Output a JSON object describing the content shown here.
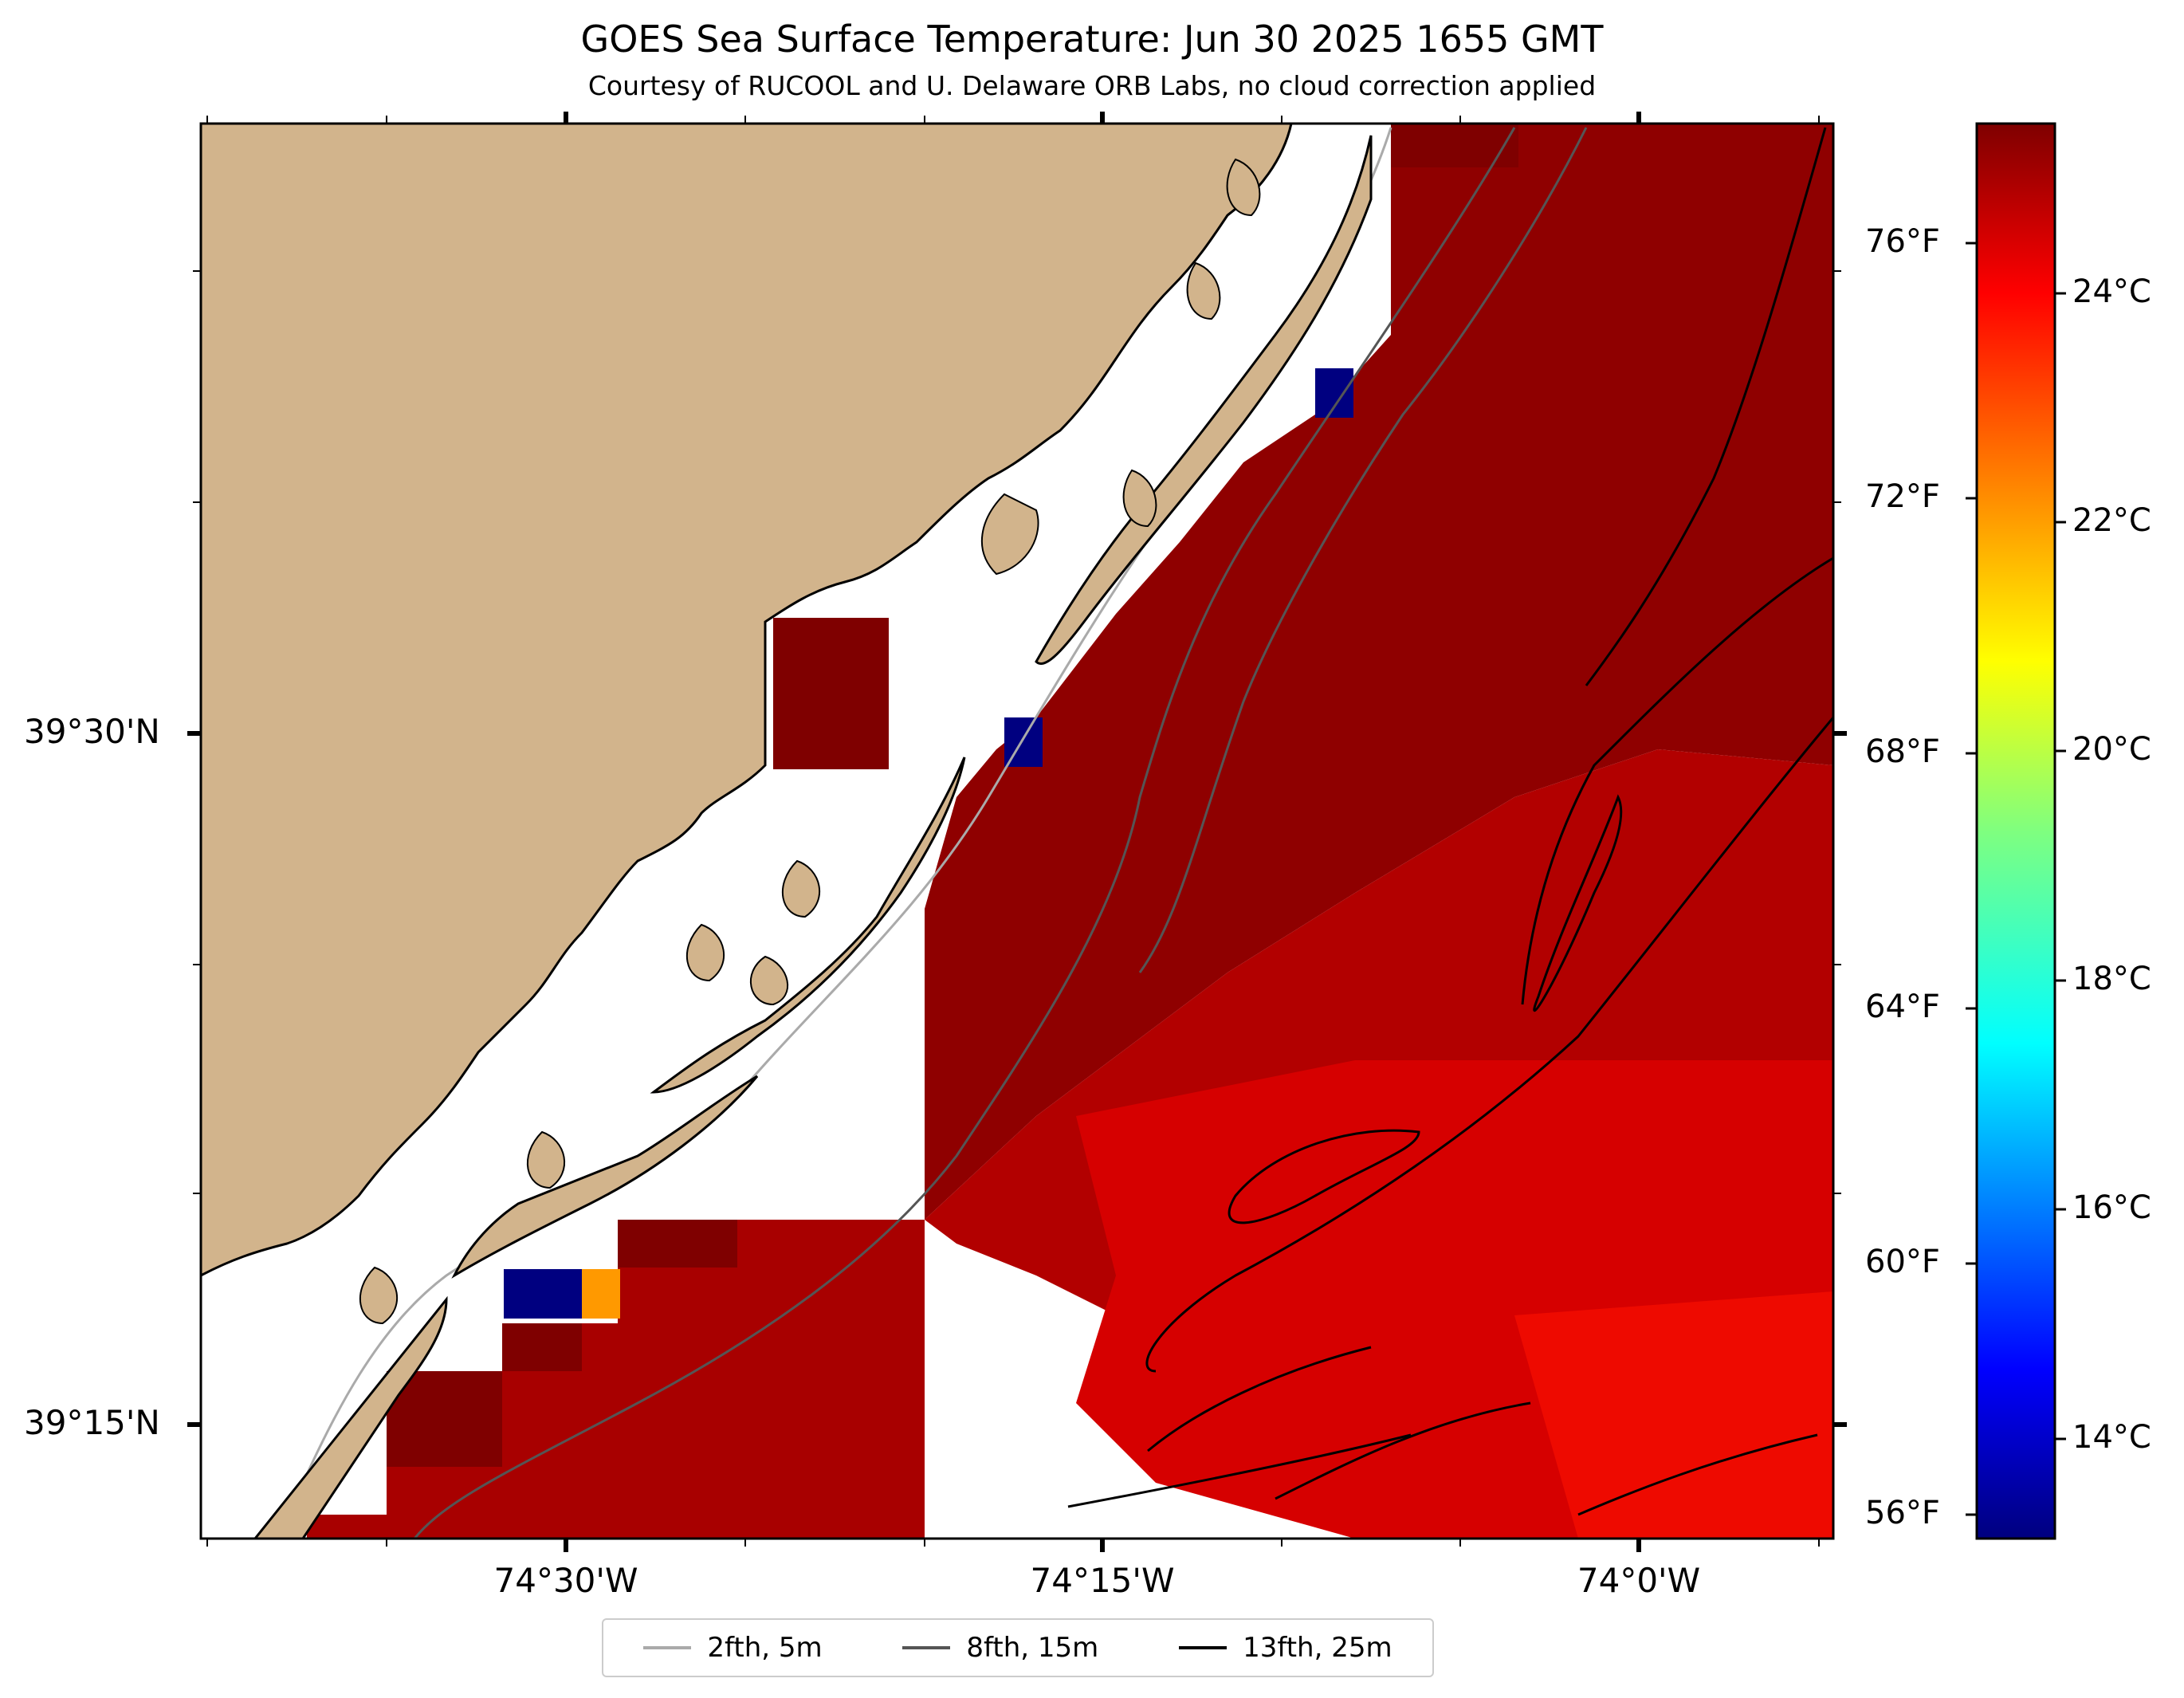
{
  "title": "GOES Sea Surface Temperature: Jun 30 2025 1655 GMT",
  "subtitle": "Courtesy of RUCOOL and U. Delaware ORB Labs, no cloud correction applied",
  "axes": {
    "lat_labels": [
      "39°30'N",
      "39°15'N"
    ],
    "lon_labels": [
      "74°30'W",
      "74°15'W",
      "74°0'W"
    ]
  },
  "colorbar": {
    "fahrenheit_labels": [
      "76°F",
      "72°F",
      "68°F",
      "64°F",
      "60°F",
      "56°F"
    ],
    "celsius_labels": [
      "24°C",
      "22°C",
      "20°C",
      "18°C",
      "16°C",
      "14°C"
    ],
    "colormap": [
      "#00007f",
      "#0000ff",
      "#007fff",
      "#00ffff",
      "#7fff7f",
      "#ffff00",
      "#ff7f00",
      "#ff0000",
      "#7f0000"
    ]
  },
  "legend": {
    "items": [
      {
        "label": "2fth, 5m",
        "color": "#aaaaaa"
      },
      {
        "label": "8fth, 15m",
        "color": "#555555"
      },
      {
        "label": "13fth, 25m",
        "color": "#000000"
      }
    ]
  },
  "colors": {
    "land": "#d2b48c",
    "sst_dark": "#8b0000",
    "sst_mid": "#b30000",
    "sst_warm": "#dd0000",
    "cold_pixel": "#000080",
    "orange_pixel": "#ff9900"
  }
}
